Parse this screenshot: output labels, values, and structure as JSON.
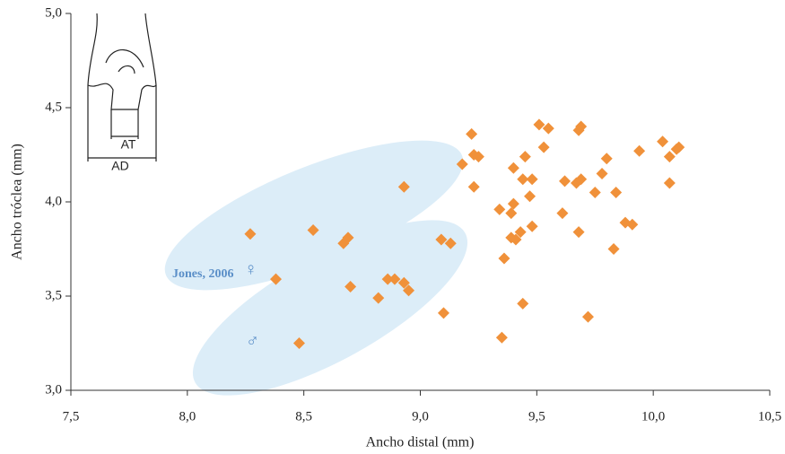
{
  "chart_data": {
    "type": "scatter",
    "x_label": "Ancho distal (mm)",
    "y_label": "Ancho tróclea (mm)",
    "annotations": [
      "Jones, 2006",
      "♀",
      "♂"
    ],
    "inset_labels": [
      "AT",
      "AD"
    ],
    "color": "#f0913a",
    "xlim": [
      7.5,
      10.5
    ],
    "xticks": [
      {
        "value": 7.5,
        "label": "7,5"
      },
      {
        "value": 8.0,
        "label": "8,0"
      },
      {
        "value": 8.5,
        "label": "8,5"
      },
      {
        "value": 9.0,
        "label": "9,0"
      },
      {
        "value": 9.5,
        "label": "9,5"
      },
      {
        "value": 10.0,
        "label": "10,0"
      },
      {
        "value": 10.5,
        "label": "10,5"
      }
    ],
    "ylim": [
      3.0,
      5.0
    ],
    "yticks": [
      {
        "value": 3.0,
        "label": "3,0"
      },
      {
        "value": 3.5,
        "label": "3,5"
      },
      {
        "value": 4.0,
        "label": "4,0"
      },
      {
        "value": 4.5,
        "label": "4,5"
      },
      {
        "value": 5.0,
        "label": "5,0"
      }
    ],
    "x": [
      8.27,
      8.38,
      8.54,
      8.67,
      8.69,
      8.7,
      8.48,
      8.82,
      8.86,
      8.89,
      8.93,
      8.95,
      8.93,
      9.09,
      9.13,
      9.1,
      9.18,
      9.22,
      9.23,
      9.25,
      9.23,
      9.34,
      9.36,
      9.35,
      9.39,
      9.4,
      9.4,
      9.39,
      9.41,
      9.43,
      9.44,
      9.44,
      9.45,
      9.47,
      9.48,
      9.48,
      9.51,
      9.53,
      9.55,
      9.61,
      9.62,
      9.67,
      9.68,
      9.69,
      9.69,
      9.68,
      9.72,
      9.75,
      9.78,
      9.8,
      9.83,
      9.84,
      9.88,
      9.91,
      9.94,
      10.04,
      10.07,
      10.07,
      10.1,
      10.11
    ],
    "values": [
      3.83,
      3.59,
      3.85,
      3.78,
      3.81,
      3.55,
      3.25,
      3.49,
      3.59,
      3.59,
      3.57,
      3.53,
      4.08,
      3.8,
      3.78,
      3.41,
      4.2,
      4.36,
      4.25,
      4.24,
      4.08,
      3.96,
      3.7,
      3.28,
      3.94,
      4.18,
      3.99,
      3.81,
      3.8,
      3.84,
      3.46,
      4.12,
      4.24,
      4.03,
      3.87,
      4.12,
      4.41,
      4.29,
      4.39,
      3.94,
      4.11,
      4.1,
      4.38,
      4.4,
      4.12,
      3.84,
      3.39,
      4.05,
      4.15,
      4.23,
      3.75,
      4.05,
      3.89,
      3.88,
      4.27,
      4.32,
      4.24,
      4.1,
      4.28,
      4.29
    ]
  }
}
